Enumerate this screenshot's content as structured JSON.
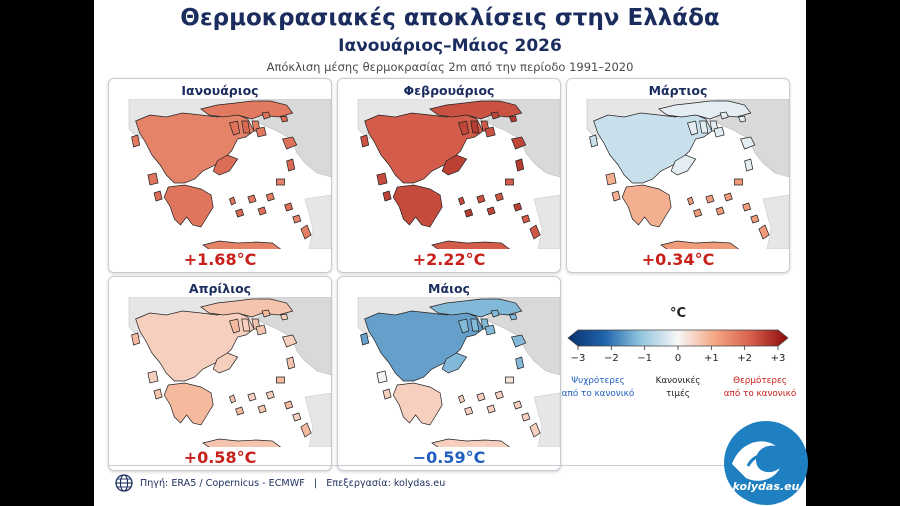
{
  "title": "Θερμοκρασιακές αποκλίσεις στην Ελλάδα",
  "subtitle": "Ιανουάριος–Μάιος 2026",
  "description": "Απόκλιση μέσης θερμοκρασίας 2m από την περίοδο 1991–2020",
  "months": [
    {
      "name": "Ιανουάριος",
      "value": "+1.68°C",
      "anomaly": 1.68
    },
    {
      "name": "Φεβρουάριος",
      "value": "+2.22°C",
      "anomaly": 2.22
    },
    {
      "name": "Μάρτιος",
      "value": "+0.34°C",
      "anomaly": 0.34
    },
    {
      "name": "Απρίλιος",
      "value": "+0.58°C",
      "anomaly": 0.58
    },
    {
      "name": "Μάιος",
      "value": "−0.59°C",
      "anomaly": -0.59
    }
  ],
  "legend": {
    "unit": "°C",
    "ticks": [
      "−3",
      "−2",
      "−1",
      "0",
      "+1",
      "+2",
      "+3"
    ],
    "cold_label": [
      "Ψυχρότερες",
      "από το κανονικό"
    ],
    "normal_label": [
      "Κανονικές",
      "τιμές"
    ],
    "warm_label": [
      "Θερμότερες",
      "από το κανονικό"
    ],
    "colors": {
      "cold": "#1f5fbf",
      "normal": "#f4f4f4",
      "warm": "#c8201a"
    }
  },
  "footer": {
    "source": "Πηγή: ERA5 / Copernicus - ECMWF",
    "separator": "|",
    "processing": "Επεξεργασία: kolydas.eu"
  },
  "logo_text": "kolydas.eu",
  "icons": [
    "globe-icon",
    "wave-logo-icon"
  ]
}
